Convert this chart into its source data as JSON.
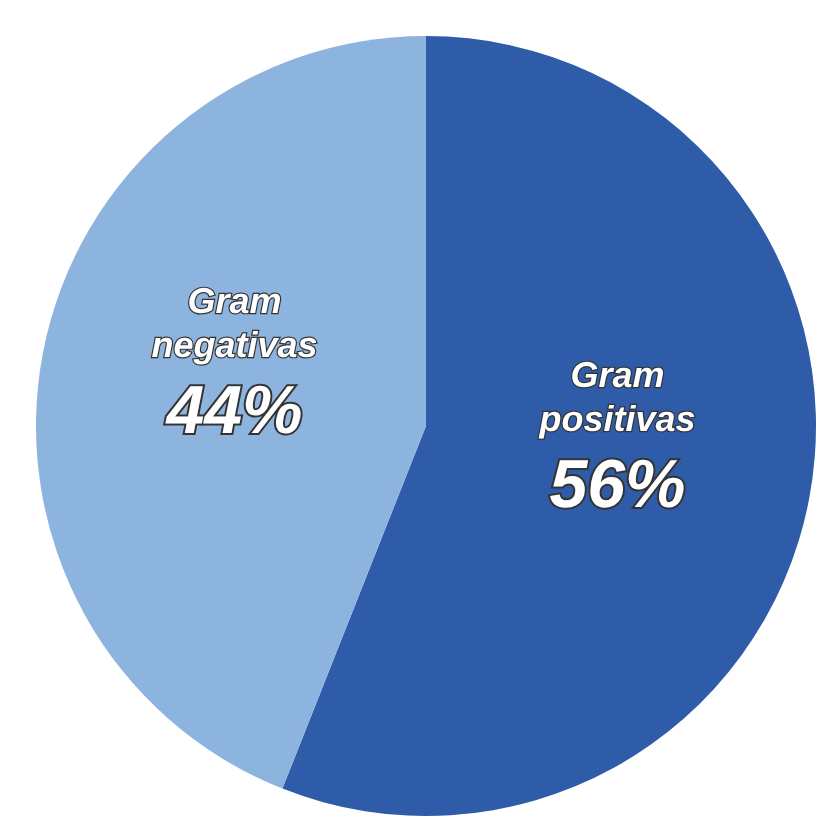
{
  "chart_data": {
    "type": "pie",
    "categories": [
      "Gram positivas",
      "Gram negativas"
    ],
    "values": [
      56,
      44
    ],
    "colors": [
      "#2f5ca8",
      "#8db4de"
    ],
    "value_labels": [
      "56%",
      "44%"
    ]
  }
}
